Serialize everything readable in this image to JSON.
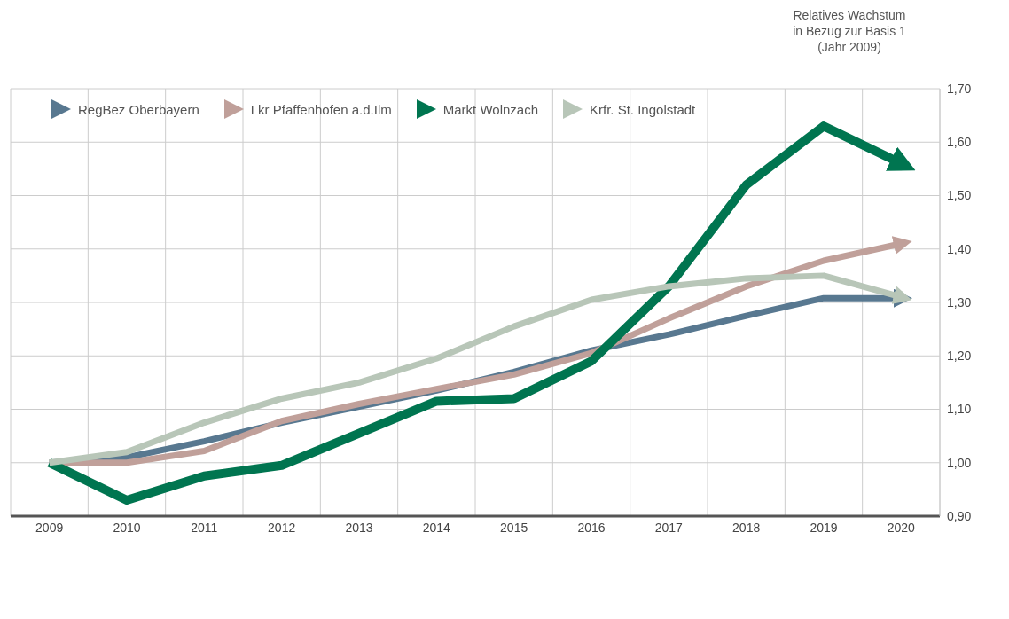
{
  "chart_data": {
    "type": "line",
    "ylabel": "Relatives Wachstum\nin Bezug zur Basis 1\n(Jahr 2009)",
    "categories": [
      "2009",
      "2010",
      "2011",
      "2012",
      "2013",
      "2014",
      "2015",
      "2016",
      "2017",
      "2018",
      "2019",
      "2020"
    ],
    "series": [
      {
        "name": "RegBez Oberbayern",
        "color": "#587890",
        "values": [
          1.0,
          1.01,
          1.04,
          1.075,
          1.105,
          1.135,
          1.17,
          1.21,
          1.24,
          1.275,
          1.308,
          1.308
        ]
      },
      {
        "name": "Lkr Pfaffenhofen a.d.Ilm",
        "color": "#c0a09a",
        "values": [
          1.0,
          1.0,
          1.022,
          1.078,
          1.11,
          1.138,
          1.165,
          1.205,
          1.27,
          1.33,
          1.378,
          1.41
        ]
      },
      {
        "name": "Markt Wolnzach",
        "color": "#007550",
        "values": [
          1.0,
          0.93,
          0.975,
          0.995,
          1.055,
          1.115,
          1.12,
          1.19,
          1.33,
          1.52,
          1.63,
          1.56
        ]
      },
      {
        "name": "Krfr. St. Ingolstadt",
        "color": "#b8c6b8",
        "values": [
          1.0,
          1.02,
          1.075,
          1.12,
          1.15,
          1.195,
          1.255,
          1.305,
          1.33,
          1.345,
          1.35,
          1.31
        ]
      }
    ],
    "ylim": [
      0.9,
      1.7
    ],
    "yticks": [
      {
        "value": 0.9,
        "label": "0,90"
      },
      {
        "value": 1.0,
        "label": "1,00"
      },
      {
        "value": 1.1,
        "label": "1,10"
      },
      {
        "value": 1.2,
        "label": "1,20"
      },
      {
        "value": 1.3,
        "label": "1,30"
      },
      {
        "value": 1.4,
        "label": "1,40"
      },
      {
        "value": 1.5,
        "label": "1,50"
      },
      {
        "value": 1.6,
        "label": "1,60"
      },
      {
        "value": 1.7,
        "label": "1,70"
      }
    ],
    "grid": true,
    "legend": "top left",
    "marker": "none",
    "line_style": "solid"
  }
}
